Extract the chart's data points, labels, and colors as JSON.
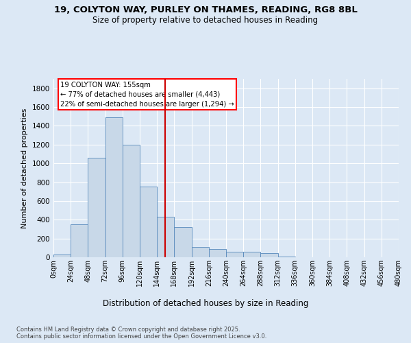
{
  "title_line1": "19, COLYTON WAY, PURLEY ON THAMES, READING, RG8 8BL",
  "title_line2": "Size of property relative to detached houses in Reading",
  "xlabel": "Distribution of detached houses by size in Reading",
  "ylabel": "Number of detached properties",
  "bar_color": "#c8d8e8",
  "bar_edge_color": "#5588bb",
  "ref_line_x": 155,
  "ref_line_color": "#cc0000",
  "annotation_title": "19 COLYTON WAY: 155sqm",
  "annotation_line2": "← 77% of detached houses are smaller (4,443)",
  "annotation_line3": "22% of semi-detached houses are larger (1,294) →",
  "footer_line1": "Contains HM Land Registry data © Crown copyright and database right 2025.",
  "footer_line2": "Contains public sector information licensed under the Open Government Licence v3.0.",
  "bin_edges": [
    0,
    24,
    48,
    72,
    96,
    120,
    144,
    168,
    192,
    216,
    240,
    264,
    288,
    312,
    336,
    360,
    384,
    408,
    432,
    456,
    480
  ],
  "bar_heights": [
    30,
    350,
    1060,
    1490,
    1200,
    750,
    430,
    320,
    110,
    90,
    55,
    55,
    45,
    10,
    0,
    0,
    0,
    0,
    0,
    0
  ],
  "ylim": [
    0,
    1900
  ],
  "yticks": [
    0,
    200,
    400,
    600,
    800,
    1000,
    1200,
    1400,
    1600,
    1800
  ],
  "background_color": "#dce8f5",
  "plot_bg_color": "#dce8f5",
  "fig_width": 6.0,
  "fig_height": 5.0,
  "dpi": 100
}
